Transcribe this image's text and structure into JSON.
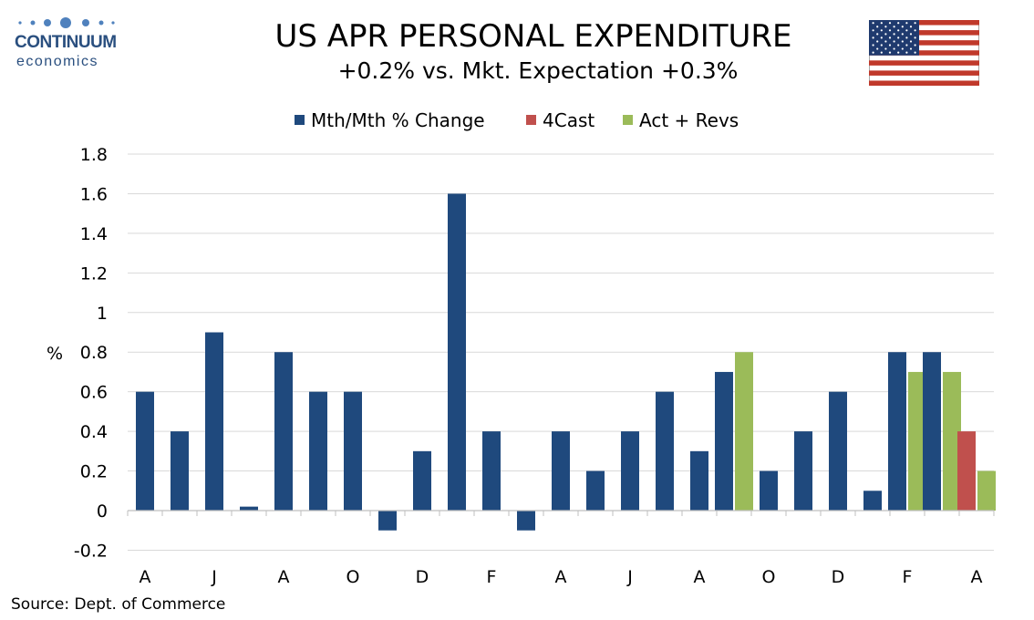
{
  "logo": {
    "name": "CONTINUUM",
    "sub": "economics"
  },
  "header": {
    "title": "US APR PERSONAL EXPENDITURE",
    "subtitle": "+0.2% vs. Mkt. Expectation +0.3%"
  },
  "source": "Source: Dept. of Commerce",
  "colors": {
    "mth": "#1f497d",
    "forecast": "#c0504d",
    "act": "#9bbb59",
    "grid": "#d9d9d9"
  },
  "chart_data": {
    "type": "bar",
    "ylabel": "%",
    "ylim": [
      -0.2,
      1.8
    ],
    "yticks": [
      -0.2,
      0,
      0.2,
      0.4,
      0.6,
      0.8,
      1,
      1.2,
      1.4,
      1.6,
      1.8
    ],
    "ytick_labels": [
      "-0.2",
      "0",
      "0.2",
      "0.4",
      "0.6",
      "0.8",
      "1",
      "1.2",
      "1.4",
      "1.6",
      "1.8"
    ],
    "x_tick_labels": [
      "A",
      "J",
      "A",
      "O",
      "D",
      "F",
      "A",
      "J",
      "A",
      "O",
      "D",
      "F",
      "A"
    ],
    "grid": true,
    "legend_position": "top",
    "series": [
      {
        "name": "Mth/Mth % Change",
        "values": [
          0.6,
          0.4,
          0.9,
          0.02,
          0.8,
          0.6,
          0.6,
          -0.1,
          0.3,
          1.6,
          0.4,
          -0.1,
          0.4,
          0.2,
          0.4,
          0.6,
          0.3,
          0.7,
          0.2,
          0.4,
          0.6,
          0.1,
          0.8,
          0.8,
          null
        ]
      },
      {
        "name": "4Cast",
        "values": [
          null,
          null,
          null,
          null,
          null,
          null,
          null,
          null,
          null,
          null,
          null,
          null,
          null,
          null,
          null,
          null,
          null,
          null,
          null,
          null,
          null,
          null,
          null,
          null,
          0.4
        ]
      },
      {
        "name": "Act + Revs",
        "values": [
          null,
          null,
          null,
          null,
          null,
          null,
          null,
          null,
          null,
          null,
          null,
          null,
          null,
          null,
          null,
          null,
          null,
          0.8,
          null,
          null,
          null,
          null,
          0.7,
          0.7,
          0.2
        ]
      }
    ]
  }
}
